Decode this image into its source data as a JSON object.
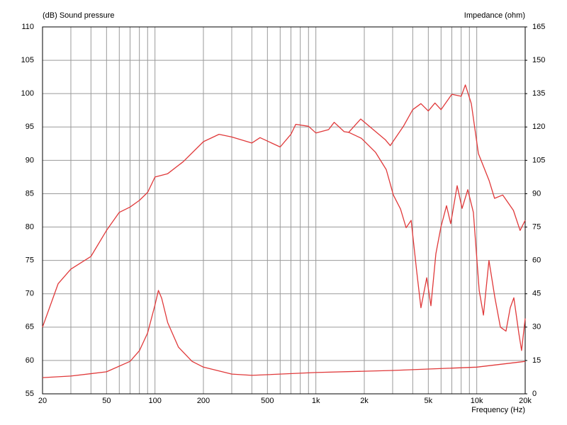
{
  "chart_data": {
    "type": "line",
    "y_label": "(dB)  Sound pressure",
    "y2_label": "Impedance  (ohm)",
    "x_label": "Frequency  (Hz)",
    "x_scale": "log",
    "xlim": [
      20,
      20000
    ],
    "xticks": [
      20,
      50,
      100,
      200,
      500,
      {
        "value": 1000,
        "label": "1k"
      },
      {
        "value": 2000,
        "label": "2k"
      },
      {
        "value": 5000,
        "label": "5k"
      },
      {
        "value": 10000,
        "label": "10k"
      },
      {
        "value": 20000,
        "label": "20k"
      }
    ],
    "xgrid_minor": [
      30,
      40,
      60,
      70,
      80,
      90,
      300,
      400,
      600,
      700,
      800,
      900,
      3000,
      4000,
      6000,
      7000,
      8000,
      9000
    ],
    "ylim": [
      55,
      110
    ],
    "yticks": [
      55,
      60,
      65,
      70,
      75,
      80,
      85,
      90,
      95,
      100,
      105,
      110
    ],
    "y2lim": [
      0,
      165
    ],
    "y2ticks": [
      0,
      15,
      30,
      45,
      60,
      75,
      90,
      105,
      120,
      135,
      150,
      165
    ],
    "grid": true,
    "series": [
      {
        "color": "#e0393a",
        "x": [
          20,
          25,
          30,
          40,
          50,
          60,
          70,
          80,
          90,
          100,
          120,
          150,
          200,
          250,
          300,
          400,
          450,
          600,
          700,
          750,
          900,
          1000,
          1200,
          1300,
          1500,
          1600,
          1900,
          2200,
          2700,
          2900,
          3500,
          4000,
          4500,
          5000,
          5500,
          6000,
          7000,
          8000,
          8500,
          9250,
          10240,
          11920,
          12900,
          14500,
          16900,
          18600,
          20000
        ],
        "values": [
          65,
          71.5,
          73.7,
          75.6,
          79.5,
          82.2,
          83,
          84,
          85.2,
          87.5,
          88,
          89.8,
          92.8,
          93.9,
          93.5,
          92.6,
          93.4,
          92,
          93.9,
          95.4,
          95.1,
          94.1,
          94.6,
          95.7,
          94.3,
          94.2,
          96.2,
          94.9,
          93.1,
          92.2,
          95.1,
          97.6,
          98.5,
          97.4,
          98.6,
          97.6,
          99.9,
          99.6,
          101.3,
          98.5,
          91,
          87,
          84.3,
          84.8,
          82.5,
          79.5,
          81
        ]
      },
      {
        "color": "#e0393a",
        "x": [
          1600,
          1920,
          2350,
          2740,
          3030,
          3360,
          3640,
          3910,
          4240,
          4500,
          4890,
          5190,
          5570,
          5990,
          6490,
          6890,
          7550,
          8110,
          8790,
          9530,
          10350,
          11000,
          11910,
          12940,
          14030,
          15200,
          16150,
          17000,
          18250,
          19000,
          20000
        ],
        "values": [
          94.2,
          93.3,
          91.2,
          88.6,
          84.8,
          82.7,
          79.9,
          81,
          73.2,
          67.9,
          72.4,
          68.2,
          76,
          80,
          83.2,
          80.5,
          86.2,
          82.8,
          85.6,
          82.2,
          70.5,
          66.8,
          75,
          69.5,
          65,
          64.4,
          67.9,
          69.4,
          64.1,
          61.5,
          66.3
        ]
      },
      {
        "color": "#e0393a",
        "axis": "y2",
        "x": [
          20,
          30,
          50,
          70,
          80,
          90,
          100,
          105,
          110,
          120,
          140,
          170,
          200,
          300,
          400,
          1000,
          3000,
          10000,
          20000
        ],
        "values": [
          7.3,
          8,
          9.9,
          14.6,
          19.4,
          27.4,
          40,
          46.5,
          43,
          32,
          21,
          14.6,
          12,
          8.9,
          8.3,
          9.6,
          10.5,
          12,
          14.6
        ]
      }
    ]
  }
}
